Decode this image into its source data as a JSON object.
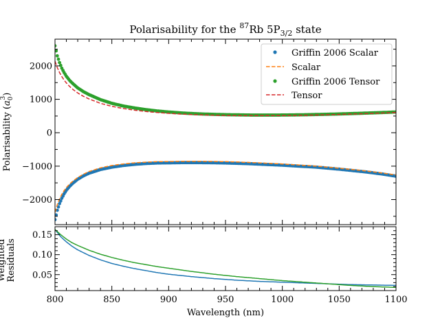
{
  "chart_data": [
    {
      "type": "scatter",
      "title_main": "Polarisability for the ",
      "title_sup": "87",
      "title_mid": "Rb 5P",
      "title_sub": "3/2",
      "title_end": " state",
      "ylabel_main": "Polarisability (",
      "ylabel_var": "a",
      "ylabel_sub": "0",
      "ylabel_sup": "3",
      "ylabel_end": ")",
      "xlim": [
        800,
        1100
      ],
      "ylim": [
        -2750,
        2800
      ],
      "yticks": [
        -2000,
        -1000,
        0,
        1000,
        2000
      ],
      "ytick_labels": [
        "−2000",
        "−1000",
        "0",
        "1000",
        "2000"
      ],
      "legend_position": "top-right",
      "colors": {
        "scalar_points": "#1f77b4",
        "scalar_line": "#ff7f0e",
        "tensor_points": "#2ca02c",
        "tensor_line": "#d62728"
      },
      "series": [
        {
          "name": "Griffin 2006 Scalar",
          "style": "points",
          "x": [
            800,
            802,
            804,
            806,
            808,
            810,
            813,
            816,
            820,
            825,
            830,
            840,
            850,
            860,
            870,
            880,
            890,
            900,
            910,
            920,
            930,
            940,
            950,
            960,
            970,
            980,
            990,
            1000,
            1010,
            1020,
            1030,
            1040,
            1050,
            1060,
            1070,
            1080,
            1090,
            1100
          ],
          "y": [
            -2600,
            -2320,
            -2120,
            -1960,
            -1830,
            -1720,
            -1600,
            -1500,
            -1390,
            -1290,
            -1210,
            -1100,
            -1030,
            -980,
            -945,
            -920,
            -905,
            -900,
            -895,
            -893,
            -895,
            -898,
            -905,
            -915,
            -925,
            -940,
            -955,
            -970,
            -990,
            -1010,
            -1030,
            -1060,
            -1090,
            -1125,
            -1160,
            -1200,
            -1245,
            -1300
          ]
        },
        {
          "name": "Scalar",
          "style": "dashed",
          "x": [
            800,
            802,
            804,
            806,
            808,
            810,
            813,
            816,
            820,
            825,
            830,
            840,
            850,
            860,
            870,
            880,
            890,
            900,
            910,
            920,
            930,
            940,
            950,
            960,
            970,
            980,
            990,
            1000,
            1010,
            1020,
            1030,
            1040,
            1050,
            1060,
            1070,
            1080,
            1090,
            1100
          ],
          "y": [
            -2380,
            -2150,
            -1980,
            -1840,
            -1730,
            -1640,
            -1530,
            -1440,
            -1340,
            -1240,
            -1160,
            -1050,
            -980,
            -935,
            -900,
            -880,
            -865,
            -860,
            -855,
            -853,
            -855,
            -858,
            -865,
            -875,
            -888,
            -902,
            -918,
            -935,
            -955,
            -978,
            -1000,
            -1030,
            -1062,
            -1095,
            -1130,
            -1170,
            -1215,
            -1265
          ]
        },
        {
          "name": "Griffin 2006 Tensor",
          "style": "points",
          "x": [
            800,
            802,
            804,
            806,
            808,
            810,
            813,
            816,
            820,
            825,
            830,
            840,
            850,
            860,
            870,
            880,
            890,
            900,
            910,
            920,
            930,
            940,
            950,
            960,
            970,
            980,
            990,
            1000,
            1010,
            1020,
            1030,
            1040,
            1050,
            1060,
            1070,
            1080,
            1090,
            1100
          ],
          "y": [
            2600,
            2300,
            2100,
            1930,
            1800,
            1690,
            1560,
            1460,
            1340,
            1230,
            1140,
            990,
            880,
            800,
            740,
            690,
            650,
            620,
            595,
            575,
            560,
            550,
            540,
            535,
            530,
            528,
            528,
            530,
            533,
            538,
            545,
            553,
            562,
            572,
            583,
            595,
            607,
            620
          ]
        },
        {
          "name": "Tensor",
          "style": "dashed",
          "x": [
            800,
            802,
            804,
            806,
            808,
            810,
            813,
            816,
            820,
            825,
            830,
            840,
            850,
            860,
            870,
            880,
            890,
            900,
            910,
            920,
            930,
            940,
            950,
            960,
            970,
            980,
            990,
            1000,
            1010,
            1020,
            1030,
            1040,
            1050,
            1060,
            1070,
            1080,
            1090,
            1100
          ],
          "y": [
            2140,
            1950,
            1800,
            1680,
            1575,
            1490,
            1380,
            1290,
            1190,
            1090,
            1010,
            880,
            790,
            725,
            675,
            635,
            605,
            580,
            560,
            545,
            533,
            525,
            518,
            514,
            512,
            511,
            512,
            514,
            518,
            523,
            530,
            538,
            547,
            557,
            568,
            580,
            592,
            605
          ]
        }
      ]
    },
    {
      "type": "line",
      "ylabel": "Weighted",
      "ylabel2": "Residuals",
      "xlabel": "Wavelength (nm)",
      "xlim": [
        800,
        1100
      ],
      "ylim": [
        0.01,
        0.17
      ],
      "xticks": [
        800,
        850,
        900,
        950,
        1000,
        1050,
        1100
      ],
      "xtick_labels": [
        "800",
        "850",
        "900",
        "950",
        "1000",
        "1050",
        "1100"
      ],
      "yticks": [
        0.05,
        0.1,
        0.15
      ],
      "ytick_labels": [
        "0.05",
        "0.10",
        "0.15"
      ],
      "series": [
        {
          "color": "#1f77b4",
          "x": [
            800,
            805,
            810,
            815,
            820,
            830,
            840,
            850,
            860,
            870,
            880,
            890,
            900,
            920,
            940,
            960,
            980,
            1000,
            1020,
            1040,
            1060,
            1080,
            1100
          ],
          "y": [
            0.163,
            0.145,
            0.132,
            0.121,
            0.112,
            0.098,
            0.087,
            0.078,
            0.071,
            0.065,
            0.06,
            0.055,
            0.051,
            0.045,
            0.04,
            0.036,
            0.033,
            0.031,
            0.029,
            0.027,
            0.025,
            0.024,
            0.023
          ]
        },
        {
          "color": "#2ca02c",
          "x": [
            800,
            805,
            810,
            815,
            820,
            830,
            840,
            850,
            860,
            870,
            880,
            890,
            900,
            920,
            940,
            960,
            980,
            1000,
            1020,
            1040,
            1060,
            1080,
            1100
          ],
          "y": [
            0.163,
            0.15,
            0.139,
            0.13,
            0.123,
            0.111,
            0.101,
            0.093,
            0.086,
            0.08,
            0.075,
            0.07,
            0.066,
            0.058,
            0.051,
            0.045,
            0.04,
            0.035,
            0.031,
            0.027,
            0.023,
            0.02,
            0.018
          ]
        }
      ]
    }
  ]
}
